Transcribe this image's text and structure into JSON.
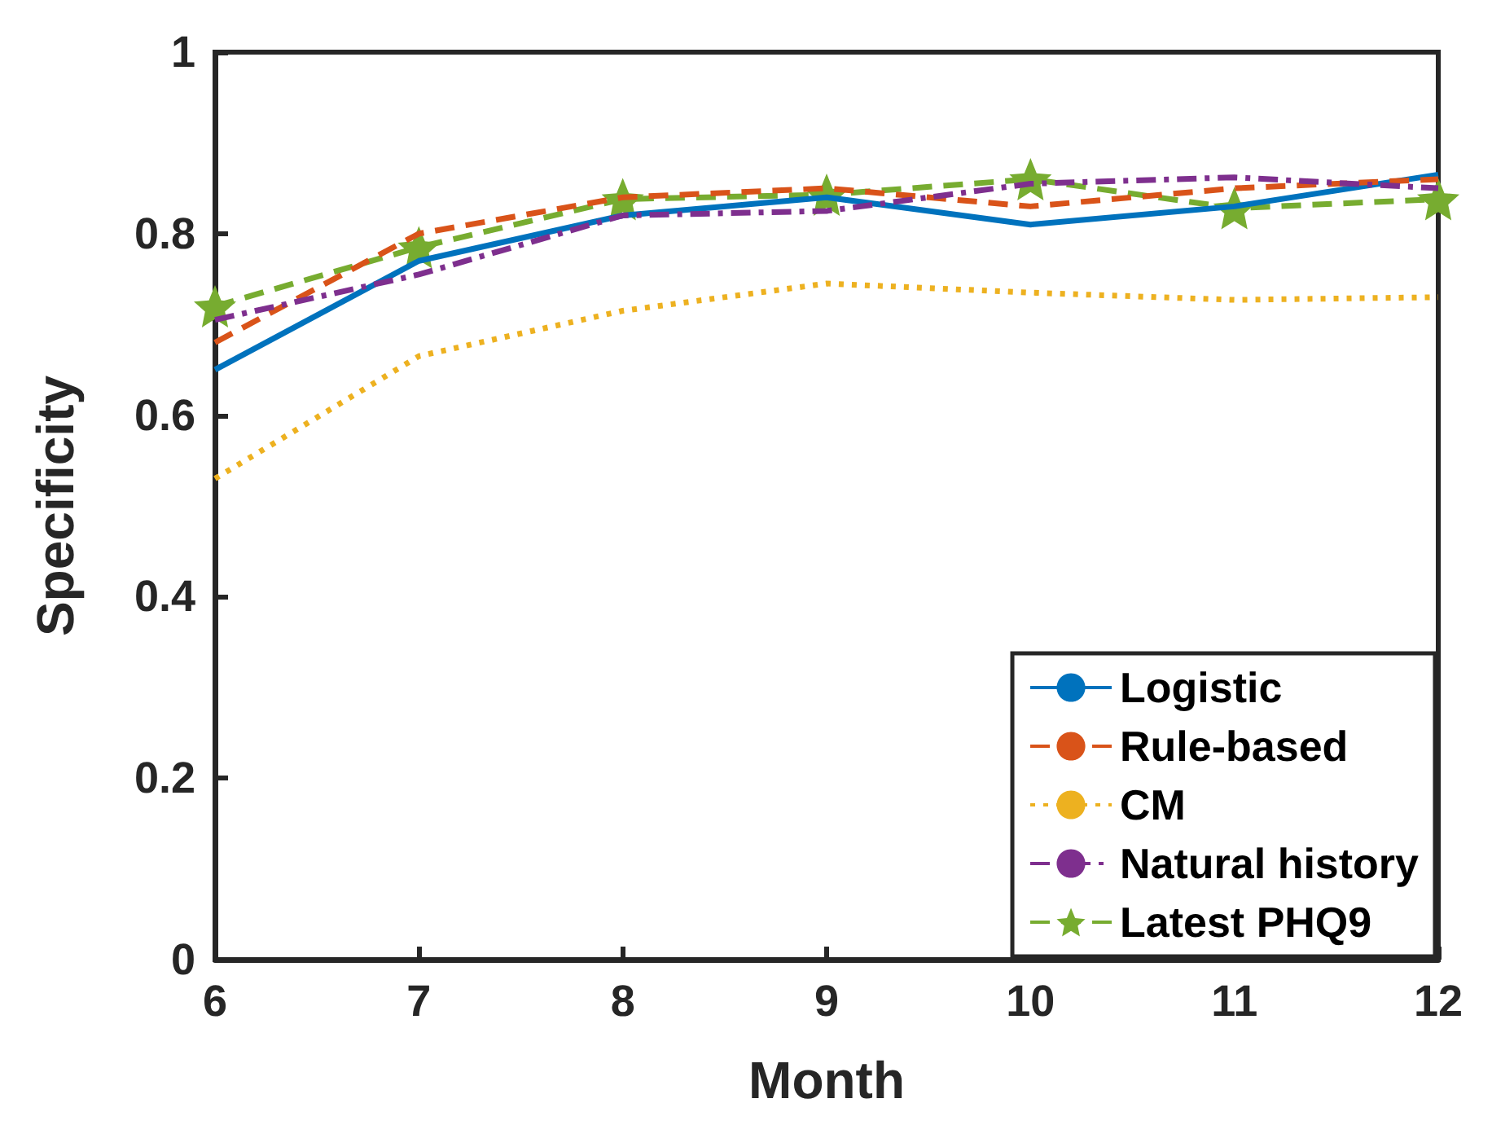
{
  "chart_data": {
    "type": "line",
    "xlabel": "Month",
    "ylabel": "Specificity",
    "x": [
      6,
      7,
      8,
      9,
      10,
      11,
      12
    ],
    "xlim": [
      6,
      12
    ],
    "xticks": [
      6,
      7,
      8,
      9,
      10,
      11,
      12
    ],
    "ylim": [
      0,
      1
    ],
    "yticks": [
      0,
      0.2,
      0.4,
      0.6,
      0.8,
      1
    ],
    "grid": false,
    "legend": "bottom right",
    "series": [
      {
        "name": "Logistic",
        "color": "#0072bd",
        "line_style": "solid",
        "marker": "none",
        "values": [
          0.65,
          0.77,
          0.82,
          0.84,
          0.81,
          0.83,
          0.865
        ]
      },
      {
        "name": "Rule-based",
        "color": "#d95319",
        "line_style": "dashed",
        "marker": "none",
        "values": [
          0.68,
          0.8,
          0.84,
          0.85,
          0.83,
          0.85,
          0.86
        ]
      },
      {
        "name": "CM",
        "color": "#edb120",
        "line_style": "dotted",
        "marker": "none",
        "values": [
          0.53,
          0.665,
          0.715,
          0.745,
          0.735,
          0.727,
          0.73
        ]
      },
      {
        "name": "Natural history",
        "color": "#7e2f8e",
        "line_style": "dashdot",
        "marker": "none",
        "values": [
          0.705,
          0.755,
          0.82,
          0.825,
          0.855,
          0.862,
          0.85
        ]
      },
      {
        "name": "Latest PHQ9",
        "color": "#77ac30",
        "line_style": "dashed",
        "marker": "star",
        "values": [
          0.72,
          0.785,
          0.838,
          0.843,
          0.86,
          0.828,
          0.838
        ]
      }
    ]
  }
}
